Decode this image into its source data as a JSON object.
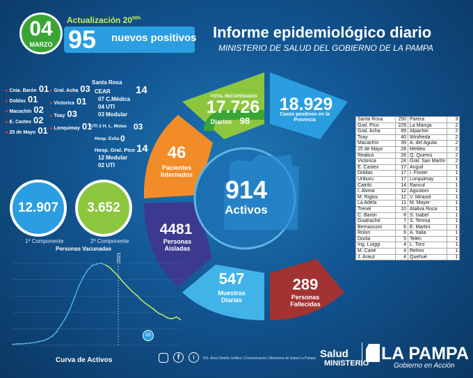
{
  "header": {
    "day": "04",
    "month": "MARZO",
    "update": "Actualización 20",
    "update_sup": "00h",
    "new_positives": "95",
    "new_positives_label": "nuevos positivos",
    "title": "Informe epidemiológico diario",
    "subtitle": "MINISTERIO DE SALUD DEL GOBIERNO DE LA PAMPA"
  },
  "localities_left": [
    {
      "name": "Cnia. Barón",
      "value": "01"
    },
    {
      "name": "Doblas",
      "value": "01"
    },
    {
      "name": "Macachín",
      "value": "02"
    },
    {
      "name": "E. Castex",
      "value": "02"
    },
    {
      "name": "25 de Mayo",
      "value": "01"
    }
  ],
  "localities_mid": [
    {
      "name": "Gral. Acha",
      "value": "03"
    },
    {
      "name": "Victorica",
      "value": "01"
    },
    {
      "name": "Toay",
      "value": "03"
    },
    {
      "name": "Lonquimay",
      "value": "01"
    }
  ],
  "santa_rosa": {
    "title": "Santa Rosa",
    "cear": "CEAR",
    "cear_value": "14",
    "items": [
      "07 C.Médica",
      "04 UTI",
      "03 Modular"
    ],
    "uti2": "UTI 2 H. L. Molas",
    "uti2_value": "03",
    "evita": "Hosp. Evita",
    "evita_value": "0"
  },
  "pico": {
    "title": "Hosp. Gral. Pico",
    "value": "14",
    "items": [
      "12 Modular",
      "02 UTI"
    ]
  },
  "vaccines": {
    "first_value": "12.907",
    "second_value": "3.652",
    "first_label": "1º Componente",
    "second_label": "2º Componente",
    "caption": "Personas Vacunadas"
  },
  "ring": {
    "recuperados_label": "TOTAL RECUPERADOS",
    "recuperados": "17.726",
    "diarios_label": "Diarios",
    "diarios": "98",
    "casos": "18.929",
    "casos_label": "Casos positivos en la Provincia",
    "internados": "46",
    "internados_label": "Pacientes Internados",
    "activos": "914",
    "activos_label": "Activos",
    "aisladas": "4481",
    "aisladas_label": "Personas Aisladas",
    "muestras": "547",
    "muestras_label": "Muestras Diarias",
    "fallecidas": "289",
    "fallecidas_label": "Personas Fallecidas"
  },
  "table_rows": [
    [
      "Santa Rosa",
      "250",
      "Parera",
      "3"
    ],
    [
      "Gral. Pico",
      "229",
      "La Maruja",
      "2"
    ],
    [
      "Gral. Acha",
      "89",
      "Alpachiri",
      "2"
    ],
    [
      "Toay",
      "40",
      "Winifreda",
      "2"
    ],
    [
      "Macachín",
      "39",
      "A. del Aguila",
      "2"
    ],
    [
      "25 de Mayo",
      "28",
      "Metileo",
      "2"
    ],
    [
      "Realicó",
      "28",
      "Q. Quemú",
      "2"
    ],
    [
      "Victorica",
      "24",
      "Gral. San Martín",
      "2"
    ],
    [
      "E. Castex",
      "17",
      "Anguil",
      "1"
    ],
    [
      "Doblas",
      "17",
      "I. Foster",
      "1"
    ],
    [
      "Uriburu",
      "17",
      "Lonquimay",
      "1"
    ],
    [
      "Catriló",
      "14",
      "Rancul",
      "1"
    ],
    [
      "I. Alvear",
      "12",
      "Agustoni",
      "1"
    ],
    [
      "M. Riglos",
      "12",
      "V. Mirasol",
      "1"
    ],
    [
      "La Adela",
      "11",
      "M. Mayer",
      "1"
    ],
    [
      "Trenel",
      "10",
      "Ataliva Roca",
      "1"
    ],
    [
      "C. Barón",
      "8",
      "S. Isabel",
      "1"
    ],
    [
      "Guatraché",
      "7",
      "S. Teresa",
      "1"
    ],
    [
      "Bernasconi",
      "6",
      "E. Martini",
      "1"
    ],
    [
      "Rolon",
      "6",
      "A. Italia",
      "1"
    ],
    [
      "Dorila",
      "5",
      "Telén",
      "1"
    ],
    [
      "Ing. Luiggi",
      "4",
      "L. Toro",
      "1"
    ],
    [
      "M. Cané",
      "4",
      "Relmo",
      "1"
    ],
    [
      "J. Arauz",
      "4",
      "Quehué",
      "1"
    ]
  ],
  "chart_data": {
    "type": "line",
    "title": "Curva de Activos",
    "annotation_year": "2021",
    "annotation_date": "3/5",
    "series": [
      {
        "values": [
          2,
          3,
          3,
          4,
          5,
          6,
          8,
          10,
          14,
          20,
          30,
          45,
          60,
          80,
          105,
          130,
          150,
          165,
          175,
          178,
          180,
          176,
          170,
          160,
          150,
          138,
          128,
          118,
          110,
          100,
          92,
          85,
          78,
          70,
          66,
          60,
          58,
          62,
          56
        ]
      }
    ]
  },
  "footer": {
    "credits": "DG. Área Diseño Gráfico | Comunicación | Ministerio de Salud La Pampa",
    "salud": "Salud",
    "ministerio": "MINISTERIO",
    "lapampa": "LA PAMPA",
    "gobierno": "Gobierno en Acción"
  },
  "colors": {
    "green": "#8cc63f",
    "blue": "#2a9ee0",
    "orange": "#f28c28",
    "purple": "#3c3a8f",
    "lightblue": "#41b3e8",
    "red": "#a33232"
  }
}
